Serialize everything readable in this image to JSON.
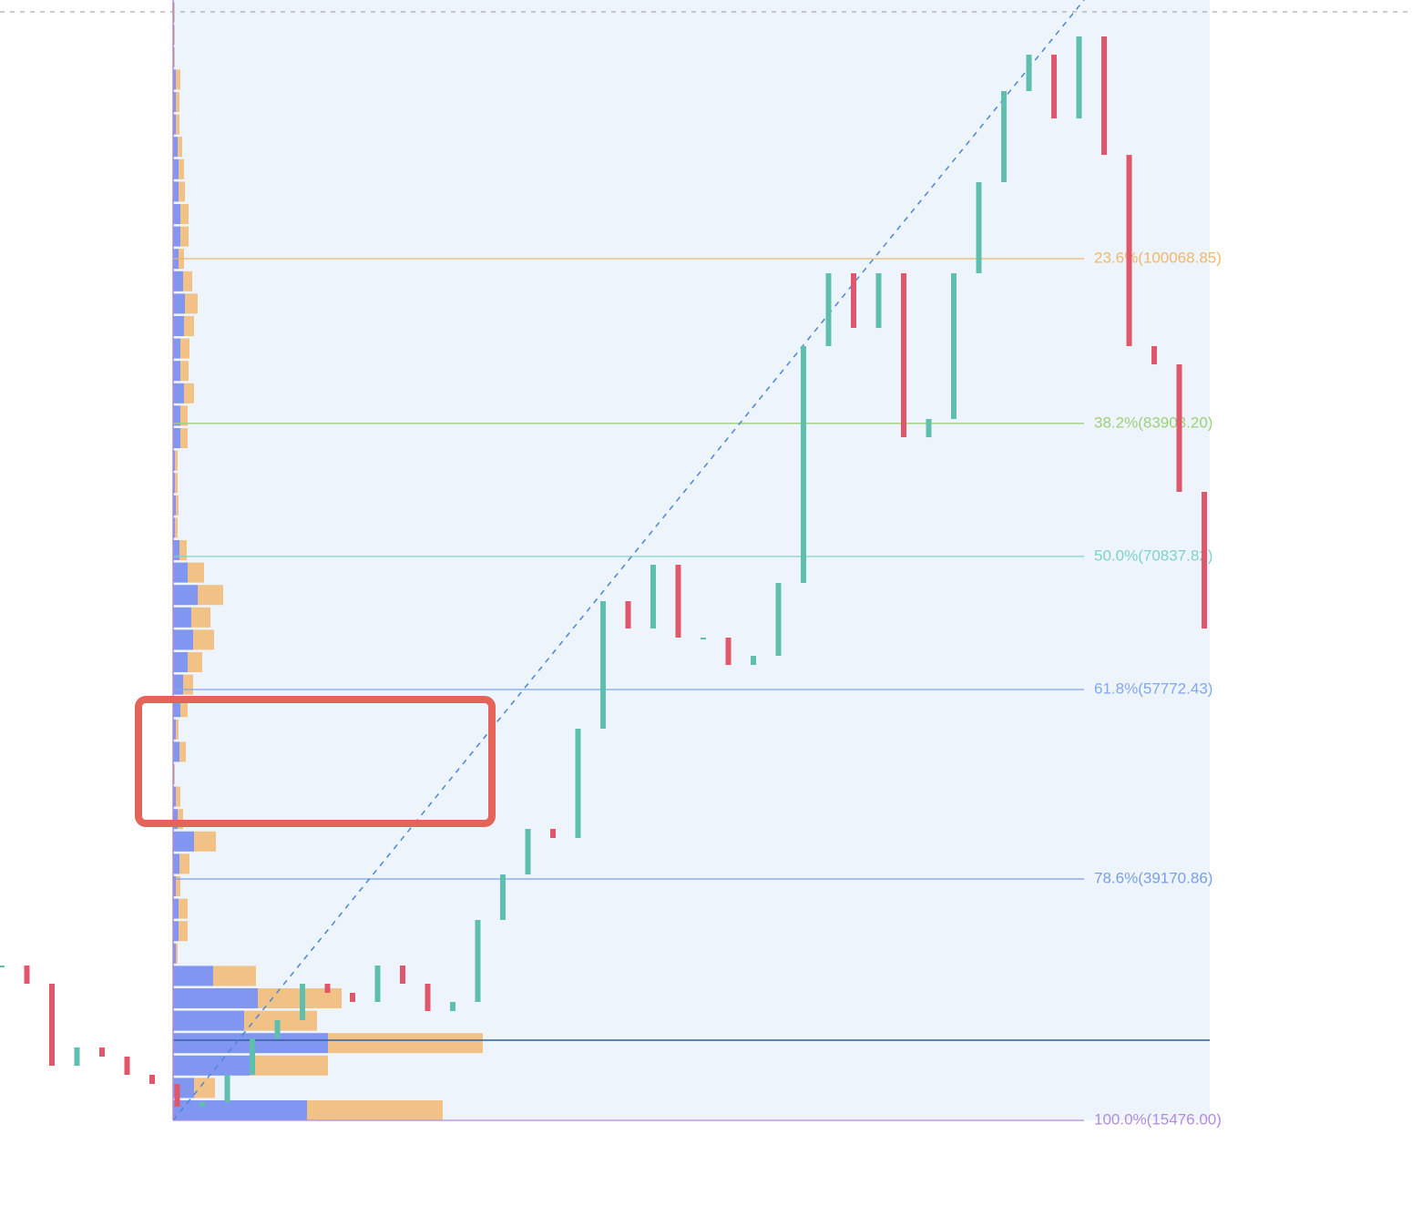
{
  "chart_data": {
    "type": "candlestick",
    "ylim": [
      6087,
      125466
    ],
    "up_color": "#5fbfae",
    "down_color": "#e0566a",
    "categories": [
      null,
      null,
      null,
      null,
      null,
      null,
      null,
      null,
      null,
      null,
      null,
      null,
      null,
      null,
      null,
      null,
      null,
      null,
      null,
      null,
      null,
      null,
      null,
      null,
      null,
      null,
      null,
      null,
      null,
      null,
      null,
      null,
      null,
      null,
      null,
      null,
      null,
      null,
      null,
      null,
      null,
      null,
      null,
      null,
      null,
      null,
      null,
      null,
      null
    ],
    "close": [
      30677,
      28889,
      20841,
      22630,
      21735,
      19947,
      19053,
      16817,
      17264,
      19947,
      23524,
      25312,
      28889,
      27995,
      27101,
      30677,
      28889,
      26206,
      27101,
      35148,
      39619,
      44090,
      43196,
      53927,
      66445,
      63763,
      70022,
      62869,
      62869,
      60186,
      61080,
      68234,
      91483,
      98637,
      93271,
      98637,
      82541,
      84329,
      98637,
      107579,
      116521,
      120097,
      113838,
      121886,
      110261,
      91483,
      89695,
      77176,
      63763
    ],
    "levels": [
      {
        "label": "23.6%(100068.85)",
        "price": 100068.85,
        "color": "#f0b86b"
      },
      {
        "label": "38.2%(83903.20)",
        "price": 83903.2,
        "color": "#9cd17a"
      },
      {
        "label": "50.0%(70837.82)",
        "price": 70837.82,
        "color": "#7dd3c8"
      },
      {
        "label": "61.8%(57772.43)",
        "price": 57772.43,
        "color": "#80a8ee"
      },
      {
        "label": "78.6%(39170.86)",
        "price": 39170.86,
        "color": "#7a9ee8"
      },
      {
        "label": "100.0%(15476.00)",
        "price": 15476.0,
        "color": "#b08ce0"
      }
    ],
    "volume_profile": {
      "buy_color": "#8096f0",
      "sell_color": "#f2c185",
      "buy": [
        147,
        23,
        84,
        170,
        78,
        93,
        44,
        3,
        6,
        6,
        3,
        7,
        23,
        5,
        3,
        1,
        7,
        3,
        8,
        11,
        16,
        22,
        20,
        27,
        16,
        7,
        2,
        3,
        2,
        2,
        8,
        8,
        12,
        8,
        8,
        12,
        13,
        11,
        6,
        8,
        8,
        6,
        6,
        5,
        3,
        3,
        3,
        1,
        1,
        1
      ],
      "sell": [
        149,
        23,
        86,
        170,
        80,
        92,
        47,
        2,
        10,
        10,
        5,
        11,
        24,
        6,
        5,
        1,
        7,
        3,
        8,
        11,
        16,
        23,
        21,
        28,
        18,
        8,
        3,
        3,
        3,
        3,
        8,
        8,
        11,
        9,
        10,
        11,
        14,
        10,
        6,
        9,
        9,
        7,
        6,
        5,
        4,
        4,
        5,
        1,
        1,
        1
      ]
    }
  }
}
